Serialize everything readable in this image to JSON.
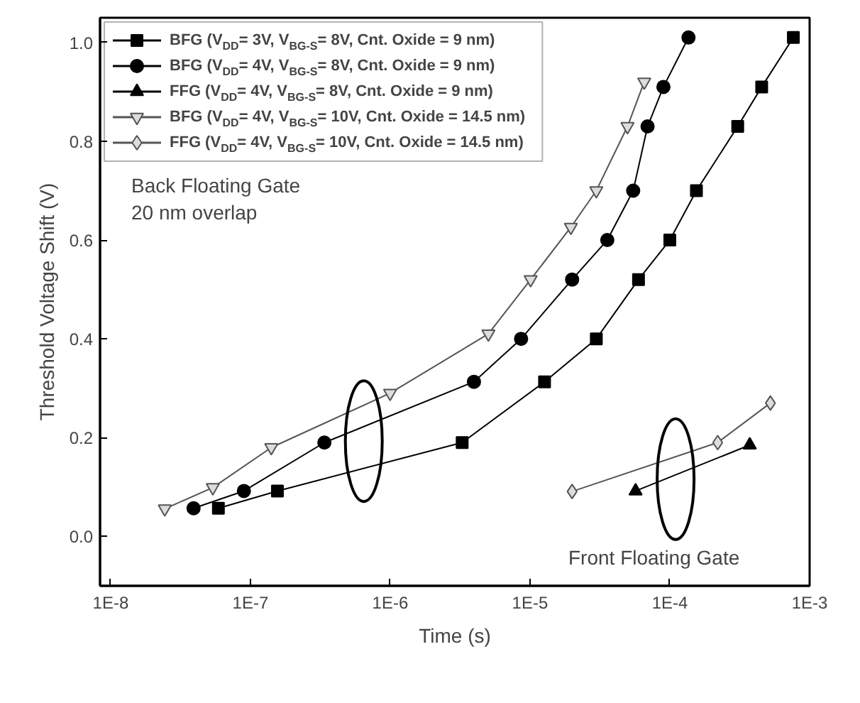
{
  "chart_data": {
    "type": "line",
    "xlabel": "Time (s)",
    "ylabel": "Threshold Voltage Shift (V)",
    "log": "x",
    "grid": false,
    "legend": "top left",
    "xlim": [
      8.4e-09,
      0.001
    ],
    "ylim": [
      -0.1,
      1.05
    ],
    "xticks": [
      {
        "value": 1e-08,
        "label": "1E-8"
      },
      {
        "value": 1e-07,
        "label": "1E-7"
      },
      {
        "value": 1e-06,
        "label": "1E-6"
      },
      {
        "value": 1e-05,
        "label": "1E-5"
      },
      {
        "value": 0.0001,
        "label": "1E-4"
      },
      {
        "value": 0.001,
        "label": "1E-3"
      }
    ],
    "yticks": [
      {
        "value": 0,
        "label": "0.0"
      },
      {
        "value": 0.2,
        "label": "0.2"
      },
      {
        "value": 0.4,
        "label": "0.4"
      },
      {
        "value": 0.6,
        "label": "0.6"
      },
      {
        "value": 0.8,
        "label": "0.8"
      },
      {
        "value": 1.0,
        "label": "1.0"
      }
    ],
    "annotations": [
      "Back Floating Gate\n20 nm overlap",
      "Front Floating Gate"
    ],
    "series": [
      {
        "name": "BFG (V$_{DD}$= 3V, V$_{BG-S}$= 8V, Cnt. Oxide = 9 nm)",
        "color": "#000000",
        "marker": "square",
        "x": [
          5.9e-08,
          1.56e-07,
          3.27e-06,
          1.27e-05,
          2.98e-05,
          5.97e-05,
          0.0001,
          0.000155,
          0.000306,
          0.000454,
          0.000765
        ],
        "values": [
          0.057,
          0.092,
          0.19,
          0.313,
          0.4,
          0.52,
          0.6,
          0.7,
          0.83,
          0.91,
          1.01
        ]
      },
      {
        "name": "BFG (V$_{DD}$= 4V, V$_{BG-S}$= 8V, Cnt. Oxide = 9 nm)",
        "color": "#000000",
        "marker": "circle",
        "x": [
          3.92e-08,
          8.98e-08,
          3.38e-07,
          3.97e-06,
          8.63e-06,
          2e-05,
          3.57e-05,
          5.47e-05,
          6.93e-05,
          9e-05,
          0.000136
        ],
        "values": [
          0.057,
          0.092,
          0.19,
          0.313,
          0.4,
          0.52,
          0.6,
          0.7,
          0.83,
          0.91,
          1.01
        ]
      },
      {
        "name": "FFG (V$_{DD}$= 4V, V$_{BG-S}$= 8V, Cnt. Oxide = 9 nm)",
        "color": "#000000",
        "marker": "triangle",
        "x": [
          5.69e-05,
          0.000373
        ],
        "values": [
          0.092,
          0.185
        ]
      },
      {
        "name": "BFG (V$_{DD}$= 4V, V$_{BG-S}$= 10V, Cnt. Oxide = 14.5 nm)",
        "color": "#555555",
        "marker": "triangle",
        "x": [
          2.44e-08,
          5.38e-08,
          1.41e-07,
          9.98e-07,
          5.04e-06,
          1.01e-05,
          1.96e-05,
          2.98e-05,
          4.98e-05,
          6.56e-05
        ],
        "values": [
          0.056,
          0.099,
          0.18,
          0.29,
          0.41,
          0.52,
          0.626,
          0.7,
          0.83,
          0.92
        ]
      },
      {
        "name": "FFG (V$_{DD}$= 4V, V$_{BG-S}$= 10V, Cnt. Oxide = 14.5 nm)",
        "color": "#555555",
        "marker": "diamond",
        "x": [
          2e-05,
          0.00022,
          0.000524
        ],
        "values": [
          0.091,
          0.19,
          0.27
        ]
      }
    ]
  }
}
